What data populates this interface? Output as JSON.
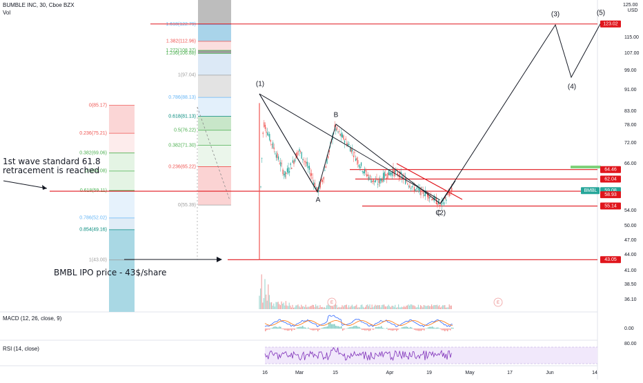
{
  "header": {
    "symbol_line": "BUMBLE INC, 30, Cboe BZX",
    "vol_label": "Vol",
    "currency_top": "125.00",
    "currency_unit": "USD"
  },
  "colors": {
    "up": "#26a69a",
    "down": "#ef5350",
    "line_red": "#e0151c",
    "rsi_line": "#7e2fb9",
    "rsi_band": "#f1e8fb",
    "macd_line": "#2962ff",
    "signal_line": "#ff6d00",
    "fib_blue": "#a8d5e8",
    "fib_grey": "#c8c8c8",
    "fib_red": "#f7b3b3",
    "fib_green": "#c8e8c8",
    "last_price_bg": "#26a69a",
    "symbol_tag_bg": "#26a69a"
  },
  "annotations": {
    "retracement_note": "1st wave standard 61.8 retracement is reached",
    "ipo_note": "BMBL IPO price - 43$/share"
  },
  "waves": [
    "(1)",
    "B",
    "A",
    "C",
    "(2)",
    "(3)",
    "(4)",
    "(5)"
  ],
  "earnings_marker": "E",
  "chart_data": {
    "type": "line",
    "title": "BUMBLE INC, 30, Cboe BZX",
    "y_axis_ticks": [
      125.0,
      115.0,
      107.0,
      99.0,
      91.0,
      83.0,
      78.0,
      72.0,
      66.0,
      54.0,
      50.0,
      47.0,
      44.0,
      41.0,
      38.5,
      36.1
    ],
    "x_axis_ticks": [
      "16",
      "Mar",
      "15",
      "Apr",
      "19",
      "May",
      "17",
      "Jun",
      "14"
    ],
    "price_tags": [
      {
        "value": "123.02",
        "kind": "line"
      },
      {
        "value": "64.46",
        "kind": "line"
      },
      {
        "value": "62.04",
        "kind": "line"
      },
      {
        "value": "59.08",
        "kind": "last",
        "symbol": "BMBL"
      },
      {
        "value": "58.93",
        "kind": "line"
      },
      {
        "value": "55.14",
        "kind": "line"
      },
      {
        "value": "43.05",
        "kind": "line"
      }
    ],
    "fib_left": [
      {
        "ratio": "0(85.17)",
        "color": "red"
      },
      {
        "ratio": "0.236(75.21)",
        "color": "red"
      },
      {
        "ratio": "0.382(69.06)",
        "color": "green"
      },
      {
        "ratio": "0.5(64.08)",
        "color": "green"
      },
      {
        "ratio": "0.618(59.11)",
        "color": "green"
      },
      {
        "ratio": "0.786(52.02)",
        "color": "blue"
      },
      {
        "ratio": "0.854(49.16)",
        "color": "teal"
      },
      {
        "ratio": "1(43.00)",
        "color": "grey"
      }
    ],
    "fib_right": [
      {
        "ratio": "1.618(122.79)",
        "color": "blue"
      },
      {
        "ratio": "1.382(112.96)",
        "color": "red"
      },
      {
        "ratio": "1.272(108.37)",
        "color": "green"
      },
      {
        "ratio": "1.236(106.88)",
        "color": "green"
      },
      {
        "ratio": "1(97.04)",
        "color": "grey"
      },
      {
        "ratio": "0.786(88.13)",
        "color": "blue"
      },
      {
        "ratio": "0.618(81.13)",
        "color": "teal"
      },
      {
        "ratio": "0.5(76.22)",
        "color": "green"
      },
      {
        "ratio": "0.382(71.30)",
        "color": "green"
      },
      {
        "ratio": "0.236(65.22)",
        "color": "red"
      },
      {
        "ratio": "0(55.39)",
        "color": "grey"
      }
    ],
    "macd": {
      "label": "MACD (12, 26, close, 9)",
      "tick": "0.00"
    },
    "rsi": {
      "label": "RSI (14, close)",
      "tick": "80.00"
    }
  }
}
